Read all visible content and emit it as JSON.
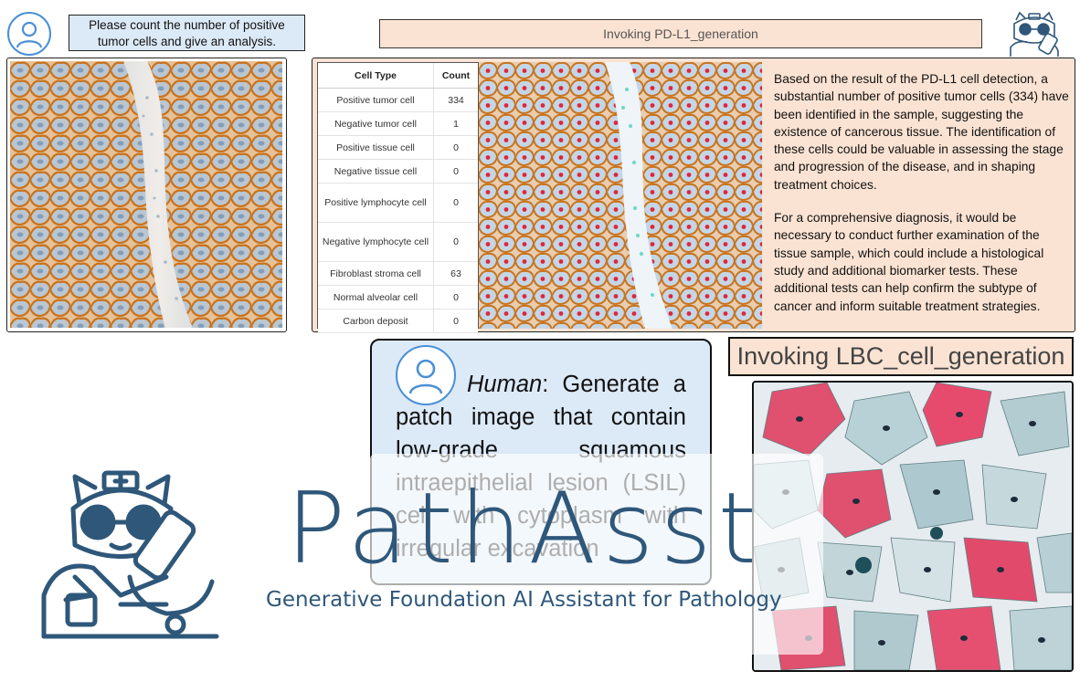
{
  "top_prompt": {
    "line1": "Please count the number of positive",
    "line2": "tumor cells and give an analysis."
  },
  "invoke_pdl1": "Invoking PD-L1_generation",
  "cell_table": {
    "headers": [
      "Cell Type",
      "Count"
    ],
    "rows": [
      {
        "type": "Positive tumor cell",
        "count": "334"
      },
      {
        "type": "Negative tumor cell",
        "count": "1"
      },
      {
        "type": "Positive tissue cell",
        "count": "0"
      },
      {
        "type": "Negative tissue cell",
        "count": "0"
      },
      {
        "type": "Positive lymphocyte cell",
        "count": "0"
      },
      {
        "type": "Negative lymphocyte cell",
        "count": "0"
      },
      {
        "type": "Fibroblast stroma cell",
        "count": "63"
      },
      {
        "type": "Normal alveolar cell",
        "count": "0"
      },
      {
        "type": "Carbon deposit",
        "count": "0"
      }
    ]
  },
  "analysis": {
    "p1": "Based on the result of the PD-L1 cell detection, a substantial number of positive tumor cells (334) have been identified in the sample, suggesting the existence of cancerous tissue. The identification of these cells could be valuable in assessing the stage and progression of the disease, and in shaping treatment choices.",
    "p2": "For a comprehensive diagnosis, it would be necessary to conduct further examination of the tissue sample, which could include a histological study and additional biomarker tests. These additional tests can help confirm the subtype of cancer and inform suitable treatment strategies."
  },
  "invoke_lbc": "Invoking LBC_cell_generation",
  "human_prompt": {
    "speaker": "Human",
    "text": ": Generate a patch image that contain low-grade squamous intraepithelial lesion (LSIL) cell with cytoplasm with irregular excavation"
  },
  "brand": {
    "title": "PathAsst",
    "subtitle": "Generative Foundation AI Assistant for Pathology"
  },
  "colors": {
    "prompt_blue": "#dce9f7",
    "invoke_peach": "#fbe3d3",
    "brand_navy": "#2e577a",
    "dab_brown": "#c8741f",
    "marker_red": "#e0253a"
  }
}
